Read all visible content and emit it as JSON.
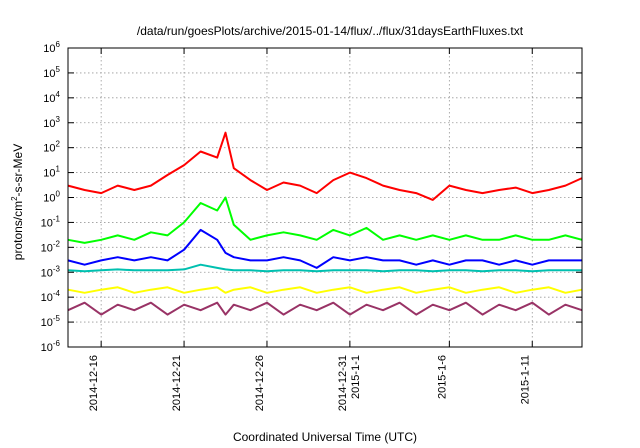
{
  "chart_data": {
    "type": "line",
    "title": "/data/run/goesPlots/archive/2015-01-14/flux/../flux/31daysEarthFluxes.txt",
    "xlabel": "Coordinated Universal Time (UTC)",
    "ylabel": "protons/cm2-s-sr-MeV",
    "ylabel_parts": {
      "base": "protons/cm",
      "sup": "2",
      "rest": "-s-sr-MeV"
    },
    "y_scale": "log",
    "ylim": [
      1e-06,
      1000000.0
    ],
    "y_ticks": [
      {
        "value": 1e-06,
        "base": "10",
        "exp": "-6"
      },
      {
        "value": 1e-05,
        "base": "10",
        "exp": "-5"
      },
      {
        "value": 0.0001,
        "base": "10",
        "exp": "-4"
      },
      {
        "value": 0.001,
        "base": "10",
        "exp": "-3"
      },
      {
        "value": 0.01,
        "base": "10",
        "exp": "-2"
      },
      {
        "value": 0.1,
        "base": "10",
        "exp": "-1"
      },
      {
        "value": 1.0,
        "base": "10",
        "exp": "0"
      },
      {
        "value": 10.0,
        "base": "10",
        "exp": "1"
      },
      {
        "value": 100.0,
        "base": "10",
        "exp": "2"
      },
      {
        "value": 1000.0,
        "base": "10",
        "exp": "3"
      },
      {
        "value": 10000.0,
        "base": "10",
        "exp": "4"
      },
      {
        "value": 100000.0,
        "base": "10",
        "exp": "5"
      },
      {
        "value": 1000000.0,
        "base": "10",
        "exp": "6"
      }
    ],
    "xlim": [
      "2014-12-14",
      "2015-01-14"
    ],
    "x_ticks": [
      {
        "date": "2014-12-16",
        "label": [
          "2014-12-16"
        ]
      },
      {
        "date": "2014-12-21",
        "label": [
          "2014-12-21"
        ]
      },
      {
        "date": "2014-12-26",
        "label": [
          "2014-12-26"
        ]
      },
      {
        "date": "2014-12-31",
        "label": [
          "2014-12-31",
          "2015-1-1"
        ]
      },
      {
        "date": "2015-01-06",
        "label": [
          "2015-1-6"
        ]
      },
      {
        "date": "2015-01-11",
        "label": [
          "2015-1-11"
        ]
      }
    ],
    "grid": true,
    "legend": "none",
    "series": [
      {
        "color": "#ff0000",
        "x": [
          "2014-12-14",
          "2014-12-15",
          "2014-12-16",
          "2014-12-17",
          "2014-12-18",
          "2014-12-19",
          "2014-12-20",
          "2014-12-21",
          "2014-12-22",
          "2014-12-23",
          "2014-12-23T12",
          "2014-12-24",
          "2014-12-25",
          "2014-12-26",
          "2014-12-27",
          "2014-12-28",
          "2014-12-29",
          "2014-12-30",
          "2014-12-31",
          "2015-01-01",
          "2015-01-02",
          "2015-01-03",
          "2015-01-04",
          "2015-01-05",
          "2015-01-06",
          "2015-01-07",
          "2015-01-08",
          "2015-01-09",
          "2015-01-10",
          "2015-01-11",
          "2015-01-12",
          "2015-01-13",
          "2015-01-14"
        ],
        "y": [
          3,
          2,
          1.5,
          3,
          2,
          3,
          8,
          20,
          70,
          40,
          400,
          15,
          5,
          2,
          4,
          3,
          1.5,
          5,
          10,
          6,
          3,
          2,
          1.5,
          0.8,
          3,
          2,
          1.5,
          2,
          2.5,
          1.5,
          2,
          3,
          6
        ]
      },
      {
        "color": "#00ff00",
        "x": [
          "2014-12-14",
          "2014-12-15",
          "2014-12-16",
          "2014-12-17",
          "2014-12-18",
          "2014-12-19",
          "2014-12-20",
          "2014-12-21",
          "2014-12-22",
          "2014-12-23",
          "2014-12-23T12",
          "2014-12-24",
          "2014-12-25",
          "2014-12-26",
          "2014-12-27",
          "2014-12-28",
          "2014-12-29",
          "2014-12-30",
          "2014-12-31",
          "2015-01-01",
          "2015-01-02",
          "2015-01-03",
          "2015-01-04",
          "2015-01-05",
          "2015-01-06",
          "2015-01-07",
          "2015-01-08",
          "2015-01-09",
          "2015-01-10",
          "2015-01-11",
          "2015-01-12",
          "2015-01-13",
          "2015-01-14"
        ],
        "y": [
          0.02,
          0.015,
          0.02,
          0.03,
          0.02,
          0.04,
          0.03,
          0.1,
          0.6,
          0.3,
          1,
          0.08,
          0.02,
          0.03,
          0.04,
          0.03,
          0.02,
          0.05,
          0.03,
          0.06,
          0.02,
          0.03,
          0.02,
          0.03,
          0.02,
          0.03,
          0.02,
          0.02,
          0.03,
          0.02,
          0.02,
          0.03,
          0.02
        ]
      },
      {
        "color": "#0000ff",
        "x": [
          "2014-12-14",
          "2014-12-15",
          "2014-12-16",
          "2014-12-17",
          "2014-12-18",
          "2014-12-19",
          "2014-12-20",
          "2014-12-21",
          "2014-12-22",
          "2014-12-23",
          "2014-12-23T12",
          "2014-12-24",
          "2014-12-25",
          "2014-12-26",
          "2014-12-27",
          "2014-12-28",
          "2014-12-29",
          "2014-12-30",
          "2014-12-31",
          "2015-01-01",
          "2015-01-02",
          "2015-01-03",
          "2015-01-04",
          "2015-01-05",
          "2015-01-06",
          "2015-01-07",
          "2015-01-08",
          "2015-01-09",
          "2015-01-10",
          "2015-01-11",
          "2015-01-12",
          "2015-01-13",
          "2015-01-14"
        ],
        "y": [
          0.003,
          0.002,
          0.003,
          0.004,
          0.003,
          0.004,
          0.003,
          0.008,
          0.05,
          0.02,
          0.006,
          0.004,
          0.003,
          0.003,
          0.004,
          0.003,
          0.0015,
          0.004,
          0.003,
          0.004,
          0.003,
          0.003,
          0.002,
          0.003,
          0.002,
          0.003,
          0.003,
          0.002,
          0.003,
          0.002,
          0.003,
          0.003,
          0.003
        ]
      },
      {
        "color": "#00c0b0",
        "x": [
          "2014-12-14",
          "2014-12-15",
          "2014-12-16",
          "2014-12-17",
          "2014-12-18",
          "2014-12-19",
          "2014-12-20",
          "2014-12-21",
          "2014-12-22",
          "2014-12-23",
          "2014-12-23T12",
          "2014-12-24",
          "2014-12-25",
          "2014-12-26",
          "2014-12-27",
          "2014-12-28",
          "2014-12-29",
          "2014-12-30",
          "2014-12-31",
          "2015-01-01",
          "2015-01-02",
          "2015-01-03",
          "2015-01-04",
          "2015-01-05",
          "2015-01-06",
          "2015-01-07",
          "2015-01-08",
          "2015-01-09",
          "2015-01-10",
          "2015-01-11",
          "2015-01-12",
          "2015-01-13",
          "2015-01-14"
        ],
        "y": [
          0.0012,
          0.0011,
          0.0012,
          0.0013,
          0.0012,
          0.0012,
          0.0012,
          0.0013,
          0.002,
          0.0015,
          0.0013,
          0.0012,
          0.0012,
          0.0011,
          0.0012,
          0.0012,
          0.0011,
          0.0012,
          0.0012,
          0.0012,
          0.0011,
          0.0012,
          0.0012,
          0.0011,
          0.0012,
          0.0012,
          0.0011,
          0.0012,
          0.0012,
          0.0011,
          0.0012,
          0.0012,
          0.0012
        ]
      },
      {
        "color": "#ffff00",
        "x": [
          "2014-12-14",
          "2014-12-15",
          "2014-12-16",
          "2014-12-17",
          "2014-12-18",
          "2014-12-19",
          "2014-12-20",
          "2014-12-21",
          "2014-12-22",
          "2014-12-23",
          "2014-12-23T12",
          "2014-12-24",
          "2014-12-25",
          "2014-12-26",
          "2014-12-27",
          "2014-12-28",
          "2014-12-29",
          "2014-12-30",
          "2014-12-31",
          "2015-01-01",
          "2015-01-02",
          "2015-01-03",
          "2015-01-04",
          "2015-01-05",
          "2015-01-06",
          "2015-01-07",
          "2015-01-08",
          "2015-01-09",
          "2015-01-10",
          "2015-01-11",
          "2015-01-12",
          "2015-01-13",
          "2015-01-14"
        ],
        "y": [
          0.0002,
          0.00015,
          0.0002,
          0.00025,
          0.00015,
          0.0002,
          0.00025,
          0.00015,
          0.0002,
          0.00025,
          0.00015,
          0.0002,
          0.00025,
          0.00015,
          0.0002,
          0.00025,
          0.00015,
          0.0002,
          0.00025,
          0.00015,
          0.0002,
          0.00025,
          0.00015,
          0.0002,
          0.00025,
          0.00015,
          0.0002,
          0.00025,
          0.00015,
          0.0002,
          0.00025,
          0.00015,
          0.0002
        ]
      },
      {
        "color": "#993366",
        "x": [
          "2014-12-14",
          "2014-12-15",
          "2014-12-16",
          "2014-12-17",
          "2014-12-18",
          "2014-12-19",
          "2014-12-20",
          "2014-12-21",
          "2014-12-22",
          "2014-12-23",
          "2014-12-23T12",
          "2014-12-24",
          "2014-12-25",
          "2014-12-26",
          "2014-12-27",
          "2014-12-28",
          "2014-12-29",
          "2014-12-30",
          "2014-12-31",
          "2015-01-01",
          "2015-01-02",
          "2015-01-03",
          "2015-01-04",
          "2015-01-05",
          "2015-01-06",
          "2015-01-07",
          "2015-01-08",
          "2015-01-09",
          "2015-01-10",
          "2015-01-11",
          "2015-01-12",
          "2015-01-13",
          "2015-01-14"
        ],
        "y": [
          3e-05,
          6e-05,
          2e-05,
          5e-05,
          3e-05,
          6e-05,
          2e-05,
          5e-05,
          3e-05,
          6e-05,
          2e-05,
          5e-05,
          3e-05,
          6e-05,
          2e-05,
          5e-05,
          3e-05,
          6e-05,
          2e-05,
          5e-05,
          3e-05,
          6e-05,
          2e-05,
          5e-05,
          3e-05,
          6e-05,
          2e-05,
          5e-05,
          3e-05,
          6e-05,
          2e-05,
          5e-05,
          3e-05
        ]
      }
    ]
  }
}
